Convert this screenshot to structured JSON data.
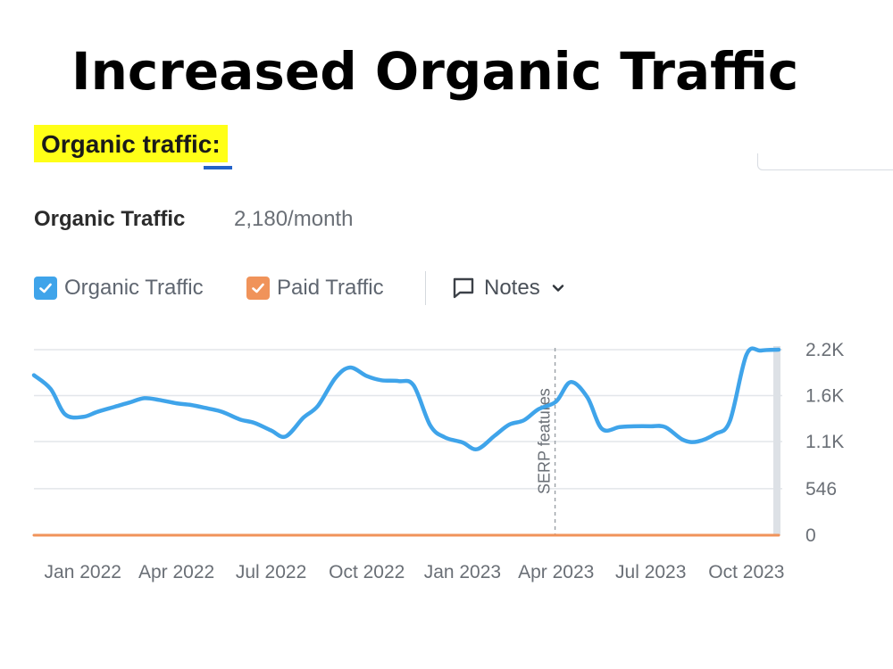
{
  "header": {
    "title": "Increased Organic Traffic",
    "section_label": "Organic traffic:",
    "highlight_color": "#ffff17",
    "underline_color": "#2463c8"
  },
  "metric": {
    "title": "Organic Traffic",
    "value": "2,180/month"
  },
  "legend": {
    "organic_label": "Organic Traffic",
    "organic_color": "#3fa4ea",
    "organic_checked": true,
    "paid_label": "Paid Traffic",
    "paid_color": "#f0935a",
    "paid_checked": true,
    "notes_label": "Notes"
  },
  "chart_data": {
    "type": "line",
    "x_tick_labels": [
      "Jan 2022",
      "Apr 2022",
      "Jul 2022",
      "Oct 2022",
      "Jan 2023",
      "Apr 2023",
      "Jul 2023",
      "Oct 2023"
    ],
    "y_tick_labels": [
      "2.2K",
      "1.6K",
      "1.1K",
      "546",
      "0"
    ],
    "y_tick_values": [
      2180,
      1640,
      1100,
      546,
      0
    ],
    "ylim": [
      0,
      2180
    ],
    "grid": true,
    "y_axis_position": "right",
    "annotation": {
      "label": "SERP features",
      "x": "2023-03-31"
    },
    "series": [
      {
        "name": "Organic Traffic",
        "color": "#3fa4ea",
        "points": [
          [
            "2021-11-15",
            1880
          ],
          [
            "2021-12-01",
            1720
          ],
          [
            "2021-12-15",
            1420
          ],
          [
            "2022-01-01",
            1390
          ],
          [
            "2022-01-15",
            1450
          ],
          [
            "2022-02-01",
            1510
          ],
          [
            "2022-02-15",
            1560
          ],
          [
            "2022-03-01",
            1610
          ],
          [
            "2022-03-15",
            1590
          ],
          [
            "2022-04-01",
            1550
          ],
          [
            "2022-04-15",
            1530
          ],
          [
            "2022-05-01",
            1490
          ],
          [
            "2022-05-15",
            1450
          ],
          [
            "2022-06-01",
            1360
          ],
          [
            "2022-06-15",
            1320
          ],
          [
            "2022-07-01",
            1230
          ],
          [
            "2022-07-15",
            1160
          ],
          [
            "2022-08-01",
            1380
          ],
          [
            "2022-08-15",
            1520
          ],
          [
            "2022-09-01",
            1850
          ],
          [
            "2022-09-15",
            1970
          ],
          [
            "2022-10-01",
            1870
          ],
          [
            "2022-10-15",
            1820
          ],
          [
            "2022-11-01",
            1810
          ],
          [
            "2022-11-15",
            1760
          ],
          [
            "2022-12-01",
            1290
          ],
          [
            "2022-12-15",
            1150
          ],
          [
            "2023-01-01",
            1090
          ],
          [
            "2023-01-15",
            1010
          ],
          [
            "2023-02-01",
            1170
          ],
          [
            "2023-02-15",
            1300
          ],
          [
            "2023-03-01",
            1350
          ],
          [
            "2023-03-15",
            1480
          ],
          [
            "2023-04-01",
            1570
          ],
          [
            "2023-04-15",
            1800
          ],
          [
            "2023-05-01",
            1620
          ],
          [
            "2023-05-15",
            1250
          ],
          [
            "2023-06-01",
            1270
          ],
          [
            "2023-06-15",
            1280
          ],
          [
            "2023-07-01",
            1280
          ],
          [
            "2023-07-15",
            1270
          ],
          [
            "2023-08-01",
            1120
          ],
          [
            "2023-08-15",
            1100
          ],
          [
            "2023-09-01",
            1190
          ],
          [
            "2023-09-15",
            1340
          ],
          [
            "2023-10-01",
            2120
          ],
          [
            "2023-10-15",
            2170
          ],
          [
            "2023-11-01",
            2180
          ]
        ]
      },
      {
        "name": "Paid Traffic",
        "color": "#f0935a",
        "points": [
          [
            "2021-11-15",
            0
          ],
          [
            "2023-11-01",
            0
          ]
        ]
      }
    ]
  }
}
